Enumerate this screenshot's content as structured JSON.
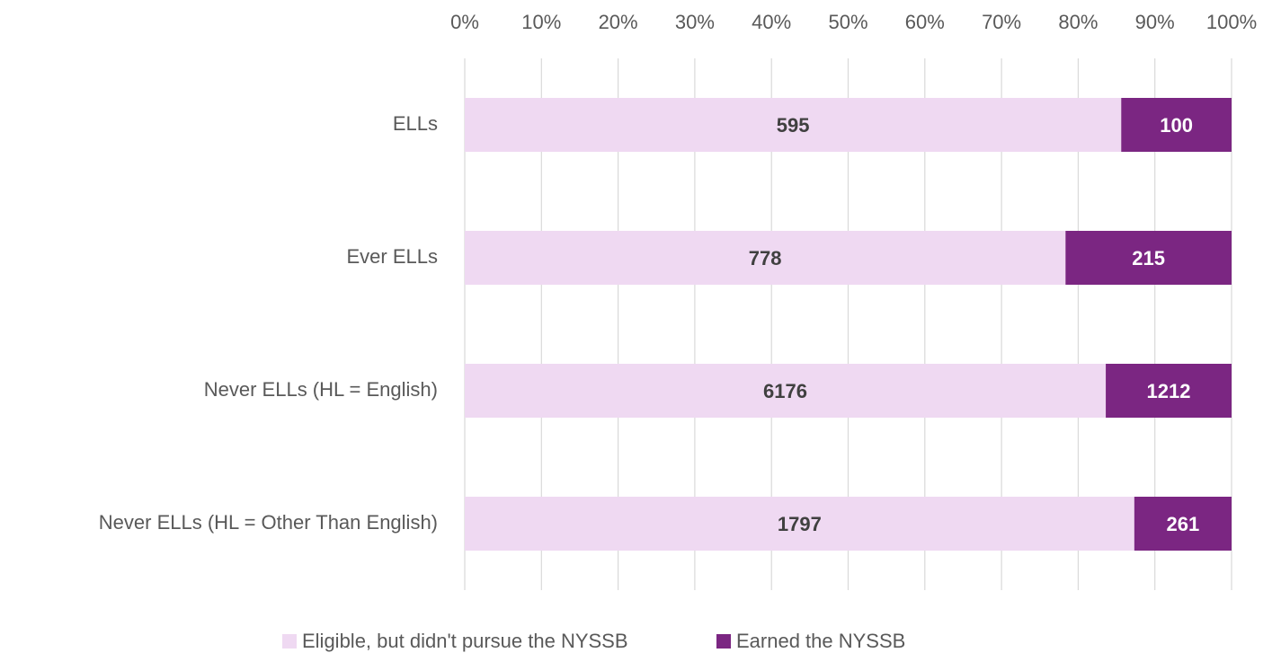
{
  "chart_data": {
    "type": "bar",
    "horizontal": true,
    "stacking": "percent",
    "categories": [
      "ELLs",
      "Ever ELLs",
      "Never ELLs (HL = English)",
      "Never ELLs (HL = Other Than English)"
    ],
    "series": [
      {
        "name": "Eligible, but didn't pursue the NYSSB",
        "color": "#efd9f2",
        "values": [
          595,
          778,
          6176,
          1797
        ]
      },
      {
        "name": "Earned the NYSSB",
        "color": "#7b2682",
        "values": [
          100,
          215,
          1212,
          261
        ]
      }
    ],
    "xlim": [
      0,
      100
    ],
    "xticks": [
      {
        "value": 0,
        "label": "0%"
      },
      {
        "value": 10,
        "label": "10%"
      },
      {
        "value": 20,
        "label": "20%"
      },
      {
        "value": 30,
        "label": "30%"
      },
      {
        "value": 40,
        "label": "40%"
      },
      {
        "value": 50,
        "label": "50%"
      },
      {
        "value": 60,
        "label": "60%"
      },
      {
        "value": 70,
        "label": "70%"
      },
      {
        "value": 80,
        "label": "80%"
      },
      {
        "value": 90,
        "label": "90%"
      },
      {
        "value": 100,
        "label": "100%"
      }
    ],
    "grid": true,
    "legend": "bottom"
  }
}
